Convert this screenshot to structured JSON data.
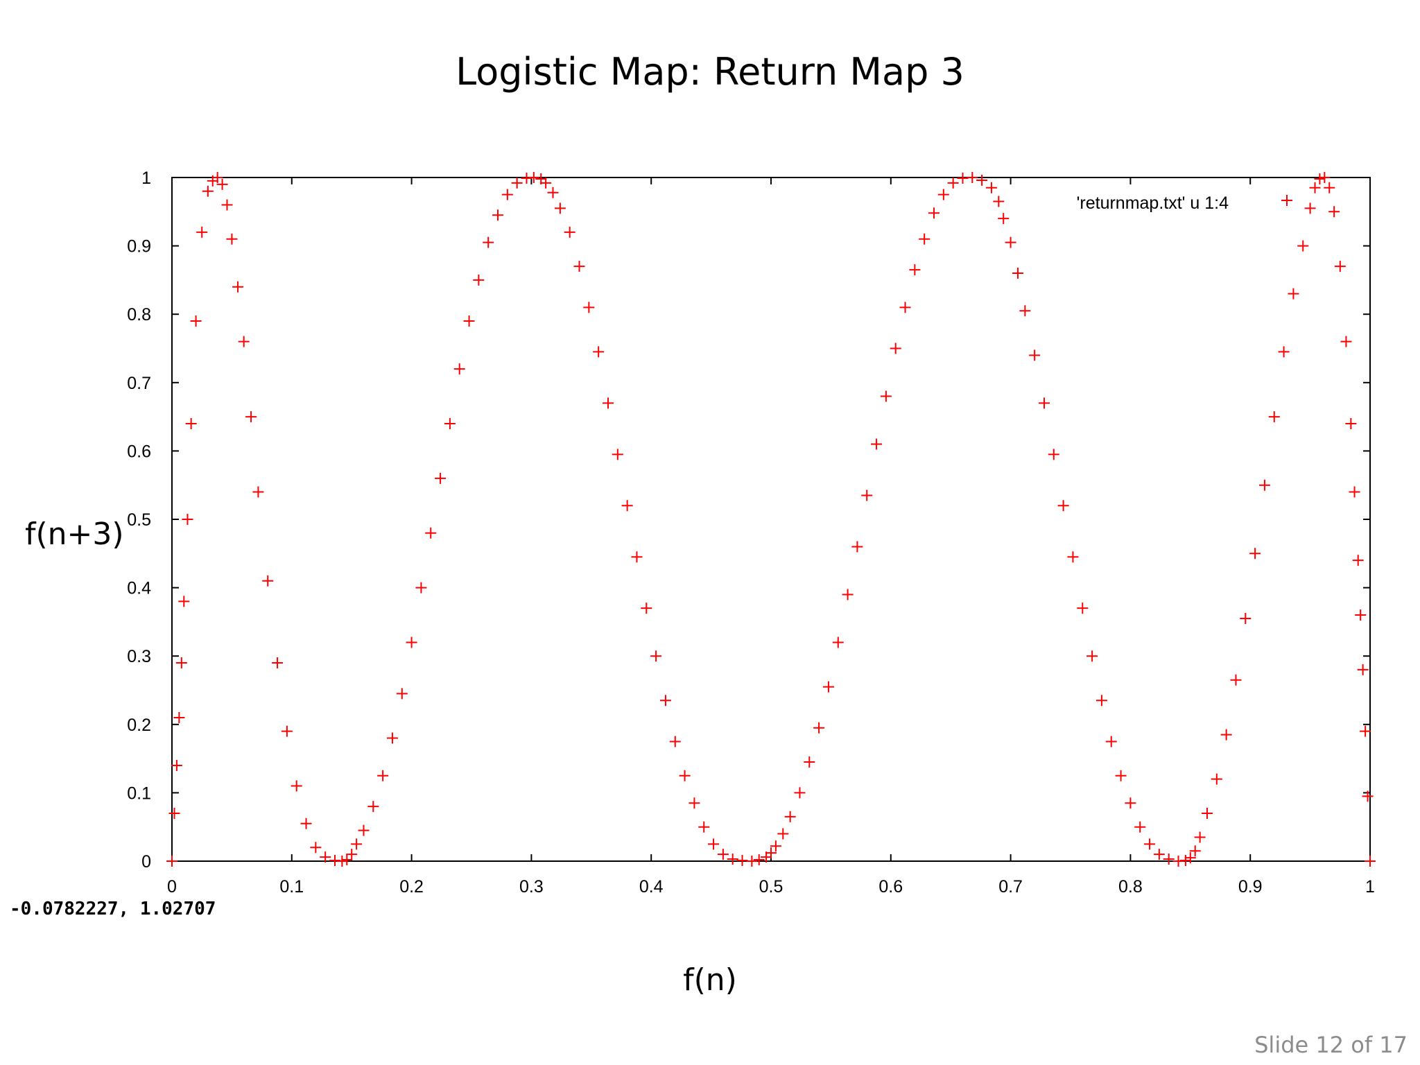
{
  "slide": {
    "title": "Logistic Map: Return Map 3",
    "number_text": "Slide 12 of 17"
  },
  "plot_window": {
    "coordinate_readout": "-0.0782227, 1.02707"
  },
  "colors": {
    "series": "#ff0000",
    "axis": "#000000",
    "background": "#ffffff"
  },
  "chart_data": {
    "type": "scatter",
    "title": "",
    "xlabel": "f(n)",
    "ylabel": "f(n+3)",
    "xlim": [
      0,
      1
    ],
    "ylim": [
      0,
      1
    ],
    "grid": false,
    "legend_position": "top-right",
    "marker": "plus",
    "x_ticks": [
      "0",
      "0.1",
      "0.2",
      "0.3",
      "0.4",
      "0.5",
      "0.6",
      "0.7",
      "0.8",
      "0.9",
      "1"
    ],
    "y_ticks": [
      "0",
      "0.1",
      "0.2",
      "0.3",
      "0.4",
      "0.5",
      "0.6",
      "0.7",
      "0.8",
      "0.9",
      "1"
    ],
    "series": [
      {
        "name": "'returnmap.txt' u 1:4",
        "color": "#ff0000",
        "x": [
          0.0,
          0.002,
          0.004,
          0.006,
          0.008,
          0.01,
          0.013,
          0.016,
          0.02,
          0.025,
          0.03,
          0.034,
          0.038,
          0.042,
          0.046,
          0.05,
          0.055,
          0.06,
          0.066,
          0.072,
          0.08,
          0.088,
          0.096,
          0.104,
          0.112,
          0.12,
          0.128,
          0.136,
          0.142,
          0.146,
          0.15,
          0.154,
          0.16,
          0.168,
          0.176,
          0.184,
          0.192,
          0.2,
          0.208,
          0.216,
          0.224,
          0.232,
          0.24,
          0.248,
          0.256,
          0.264,
          0.272,
          0.28,
          0.288,
          0.296,
          0.302,
          0.308,
          0.312,
          0.318,
          0.324,
          0.332,
          0.34,
          0.348,
          0.356,
          0.364,
          0.372,
          0.38,
          0.388,
          0.396,
          0.404,
          0.412,
          0.42,
          0.428,
          0.436,
          0.444,
          0.452,
          0.46,
          0.468,
          0.476,
          0.484,
          0.49,
          0.496,
          0.5,
          0.504,
          0.51,
          0.516,
          0.524,
          0.532,
          0.54,
          0.548,
          0.556,
          0.564,
          0.572,
          0.58,
          0.588,
          0.596,
          0.604,
          0.612,
          0.62,
          0.628,
          0.636,
          0.644,
          0.652,
          0.66,
          0.668,
          0.676,
          0.684,
          0.69,
          0.694,
          0.7,
          0.706,
          0.712,
          0.72,
          0.728,
          0.736,
          0.744,
          0.752,
          0.76,
          0.768,
          0.776,
          0.784,
          0.792,
          0.8,
          0.808,
          0.816,
          0.824,
          0.832,
          0.84,
          0.846,
          0.85,
          0.854,
          0.858,
          0.864,
          0.872,
          0.88,
          0.888,
          0.896,
          0.904,
          0.912,
          0.92,
          0.928,
          0.936,
          0.944,
          0.95,
          0.954,
          0.958,
          0.962,
          0.966,
          0.97,
          0.975,
          0.98,
          0.984,
          0.987,
          0.99,
          0.992,
          0.994,
          0.996,
          0.998,
          1.0
        ],
        "y": [
          0.0,
          0.07,
          0.14,
          0.21,
          0.29,
          0.38,
          0.5,
          0.64,
          0.79,
          0.92,
          0.98,
          0.995,
          1.0,
          0.99,
          0.96,
          0.91,
          0.84,
          0.76,
          0.65,
          0.54,
          0.41,
          0.29,
          0.19,
          0.11,
          0.055,
          0.02,
          0.006,
          0.001,
          0.0,
          0.002,
          0.01,
          0.025,
          0.045,
          0.08,
          0.125,
          0.18,
          0.245,
          0.32,
          0.4,
          0.48,
          0.56,
          0.64,
          0.72,
          0.79,
          0.85,
          0.905,
          0.945,
          0.975,
          0.992,
          0.999,
          1.0,
          0.998,
          0.992,
          0.978,
          0.955,
          0.92,
          0.87,
          0.81,
          0.745,
          0.67,
          0.595,
          0.52,
          0.445,
          0.37,
          0.3,
          0.235,
          0.175,
          0.125,
          0.085,
          0.05,
          0.025,
          0.01,
          0.003,
          0.001,
          0.0,
          0.002,
          0.006,
          0.012,
          0.022,
          0.04,
          0.065,
          0.1,
          0.145,
          0.195,
          0.255,
          0.32,
          0.39,
          0.46,
          0.535,
          0.61,
          0.68,
          0.75,
          0.81,
          0.865,
          0.91,
          0.948,
          0.975,
          0.992,
          0.999,
          1.0,
          0.996,
          0.985,
          0.965,
          0.94,
          0.905,
          0.86,
          0.805,
          0.74,
          0.67,
          0.595,
          0.52,
          0.445,
          0.37,
          0.3,
          0.235,
          0.175,
          0.125,
          0.085,
          0.05,
          0.025,
          0.01,
          0.003,
          0.0,
          0.001,
          0.005,
          0.015,
          0.035,
          0.07,
          0.12,
          0.185,
          0.265,
          0.355,
          0.45,
          0.55,
          0.65,
          0.745,
          0.83,
          0.9,
          0.955,
          0.985,
          0.998,
          1.0,
          0.985,
          0.95,
          0.87,
          0.76,
          0.64,
          0.54,
          0.44,
          0.36,
          0.28,
          0.19,
          0.095,
          0.0
        ]
      }
    ]
  }
}
